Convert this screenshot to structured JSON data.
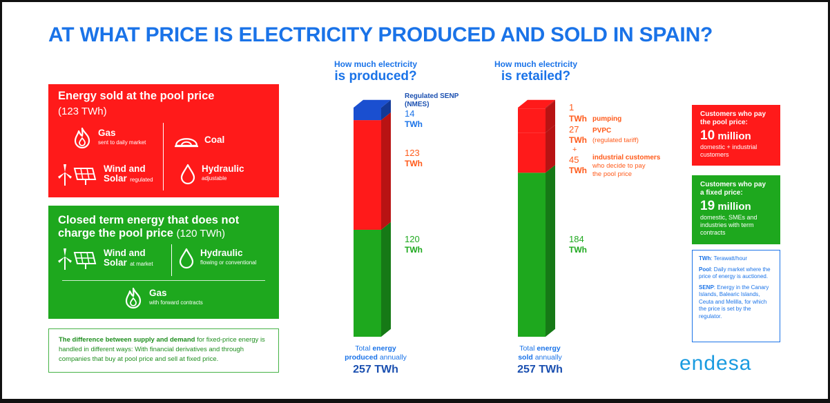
{
  "title": "AT WHAT PRICE IS ELECTRICITY PRODUCED AND SOLD IN SPAIN?",
  "pool_panel": {
    "title": "Energy sold at the pool price",
    "subtitle": "(123 TWh)",
    "items": [
      {
        "name": "Gas",
        "note": "sent to daily market",
        "icon": "flame-icon"
      },
      {
        "name": "Coal",
        "note": "",
        "icon": "coal-mine-icon"
      },
      {
        "name": "Wind and",
        "name2": "Solar",
        "note": "regulated",
        "icon": "wind-solar-icon"
      },
      {
        "name": "Hydraulic",
        "note": "adjustable",
        "icon": "water-drop-icon"
      }
    ]
  },
  "closed_panel": {
    "title": "Closed term energy that does not charge the pool price",
    "subtitle": "(120 TWh)",
    "items": [
      {
        "name": "Wind and",
        "name2": "Solar",
        "note": "at market",
        "icon": "wind-solar-icon"
      },
      {
        "name": "Hydraulic",
        "note": "flowing or conventional",
        "icon": "water-drop-icon"
      },
      {
        "name": "Gas",
        "note": "with forward contracts",
        "icon": "flame-icon"
      }
    ]
  },
  "note": {
    "bold": "The difference between supply and demand",
    "text": " for fixed-price energy is handled in different ways: With financial derivatives and through companies that buy at pool price and sell at fixed price."
  },
  "produced_header": {
    "q1": "How much electricity",
    "q2": "is produced?"
  },
  "retailed_header": {
    "q1": "How much electricity",
    "q2": "is retailed?"
  },
  "chart_data": [
    {
      "type": "bar",
      "stacked": true,
      "title": "How much electricity is produced?",
      "unit": "TWh",
      "segments": [
        {
          "name": "120 TWh",
          "value": 120,
          "color": "#1ea81e"
        },
        {
          "name": "123 TWh",
          "value": 123,
          "color": "#ff1a1a"
        },
        {
          "name": "Regulated SENP (NMES)",
          "value": 14,
          "color": "#1a4fd0"
        }
      ],
      "labels": [
        {
          "value": "120",
          "unit": "TWh"
        },
        {
          "value": "123",
          "unit": "TWh"
        },
        {
          "value": "14",
          "unit": "TWh",
          "title": "Regulated SENP",
          "title2": "(NMES)"
        }
      ],
      "total_label": {
        "line1_pre": "Total ",
        "line1_bold": "energy",
        "line2_bold": "produced",
        "line2_post": " annually",
        "value": "257 TWh"
      }
    },
    {
      "type": "bar",
      "stacked": true,
      "title": "How much electricity is retailed?",
      "unit": "TWh",
      "segments": [
        {
          "name": "184 TWh",
          "value": 184,
          "color": "#1ea81e"
        },
        {
          "name": "industrial customers",
          "value": 45,
          "color": "#ff1a1a"
        },
        {
          "name": "PVPC",
          "value": 27,
          "color": "#ff1a1a"
        },
        {
          "name": "pumping",
          "value": 1,
          "color": "#ff1a1a"
        }
      ],
      "labels": [
        {
          "value": "184",
          "unit": "TWh"
        },
        {
          "value": "45",
          "unit": "TWh",
          "desc": "industrial customers",
          "desc2": "who decide to pay",
          "desc3": "the pool price"
        },
        {
          "value": "27",
          "unit": "TWh",
          "desc": "PVPC",
          "desc2": "(regulated tariff)"
        },
        {
          "value": "1",
          "unit": "TWh",
          "desc": "pumping"
        }
      ],
      "plus": "+",
      "total_label": {
        "line1_pre": "Total ",
        "line1_bold": "energy",
        "line2_bold": "sold",
        "line2_post": " annually",
        "value": "257 TWh"
      }
    }
  ],
  "pool_customers": {
    "head1": "Customers who pay",
    "head2": "the pool price:",
    "num": "10",
    "unit": "million",
    "desc1": "domestic + industrial",
    "desc2": "customers"
  },
  "fixed_customers": {
    "head1": "Customers who pay",
    "head2": "a fixed price:",
    "num": "19",
    "unit": "million",
    "desc1": "domestic, SMEs and",
    "desc2": "industries with term",
    "desc3": "contracts"
  },
  "glossary": [
    {
      "term": "TWh",
      "def": ": Terawatt/hour"
    },
    {
      "term": "Pool",
      "def": ": Daily market where the price of energy is auctioned."
    },
    {
      "term": "SENP",
      "def": ": Energy in the Canary Islands, Balearic Islands, Ceuta and Melilla, for which the price is set by the regulator."
    }
  ],
  "logo": "endesa",
  "colors": {
    "accent": "#1a73e8",
    "red": "#ff1a1a",
    "green": "#1ea81e",
    "blue": "#1a4fd0",
    "orange": "#ff5a1a"
  }
}
